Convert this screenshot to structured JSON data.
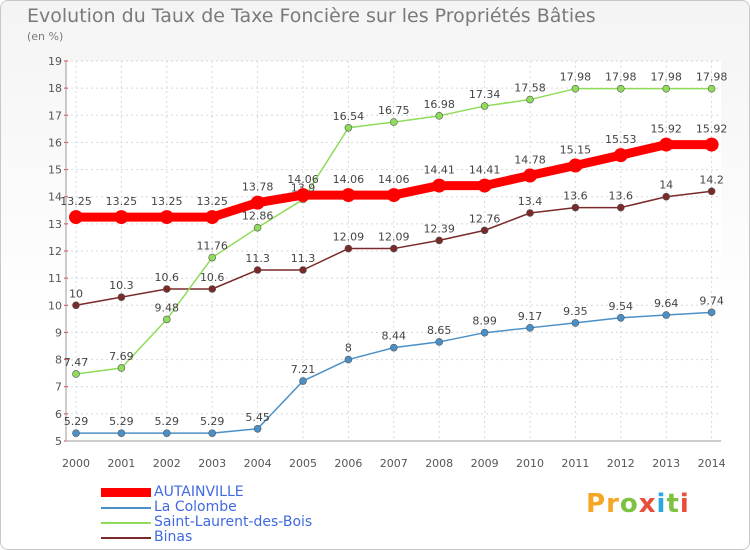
{
  "title": "Evolution du Taux de Taxe Foncière sur les Propriétés Bâties",
  "subtitle": "(en %)",
  "logo": [
    "P",
    "r",
    "o",
    "x",
    "i",
    "t",
    "i"
  ],
  "logo_colors": [
    "#f5a623",
    "#f5a623",
    "#7ec242",
    "#e94e3c",
    "#29a9e0",
    "#7ec242",
    "#e94e3c"
  ],
  "chart_data": {
    "type": "line",
    "x": [
      "2000",
      "2001",
      "2002",
      "2003",
      "2004",
      "2005",
      "2006",
      "2007",
      "2008",
      "2009",
      "2010",
      "2011",
      "2012",
      "2013",
      "2014"
    ],
    "ylim": [
      5,
      19
    ],
    "yticks": [
      "5",
      "6",
      "7",
      "8",
      "9",
      "10",
      "11",
      "12",
      "13",
      "14",
      "15",
      "16",
      "17",
      "18",
      "19"
    ],
    "grid": true,
    "series": [
      {
        "name": "AUTAINVILLE",
        "color": "#ff0000",
        "values": [
          13.25,
          13.25,
          13.25,
          13.25,
          13.78,
          14.06,
          14.06,
          14.06,
          14.41,
          14.41,
          14.78,
          15.15,
          15.53,
          15.92,
          15.92
        ],
        "labels": [
          "13.25",
          "13.25",
          "13.25",
          "13.25",
          "13.78",
          "14.06",
          "14.06",
          "14.06",
          "14.41",
          "14.41",
          "14.78",
          "15.15",
          "15.53",
          "15.92",
          "15.92"
        ]
      },
      {
        "name": "La Colombe",
        "color": "#4a90c8",
        "values": [
          5.29,
          5.29,
          5.29,
          5.29,
          5.45,
          7.21,
          8,
          8.44,
          8.65,
          8.99,
          9.17,
          9.35,
          9.54,
          9.64,
          9.74
        ],
        "labels": [
          "5.29",
          "5.29",
          "5.29",
          "5.29",
          "5.45",
          "7.21",
          "8",
          "8.44",
          "8.65",
          "8.99",
          "9.17",
          "9.35",
          "9.54",
          "9.64",
          "9.74"
        ]
      },
      {
        "name": "Saint-Laurent-des-Bois",
        "color": "#8fdc5a",
        "values": [
          7.47,
          7.69,
          9.48,
          11.76,
          12.86,
          13.9,
          16.54,
          16.75,
          16.98,
          17.34,
          17.58,
          17.98,
          17.98,
          17.98,
          17.98
        ],
        "labels": [
          "7.47",
          "7.69",
          "9.48",
          "11.76",
          "12.86",
          "13.9",
          "16.54",
          "16.75",
          "16.98",
          "17.34",
          "17.58",
          "17.98",
          "17.98",
          "17.98",
          "17.98"
        ]
      },
      {
        "name": "Binas",
        "color": "#7a2a2a",
        "values": [
          10,
          10.3,
          10.6,
          10.6,
          11.3,
          11.3,
          12.09,
          12.09,
          12.39,
          12.76,
          13.4,
          13.6,
          13.6,
          14,
          14.2
        ],
        "labels": [
          "10",
          "10.3",
          "10.6",
          "10.6",
          "11.3",
          "11.3",
          "12.09",
          "12.09",
          "12.39",
          "12.76",
          "13.4",
          "13.6",
          "13.6",
          "14",
          "14.2"
        ]
      }
    ]
  }
}
